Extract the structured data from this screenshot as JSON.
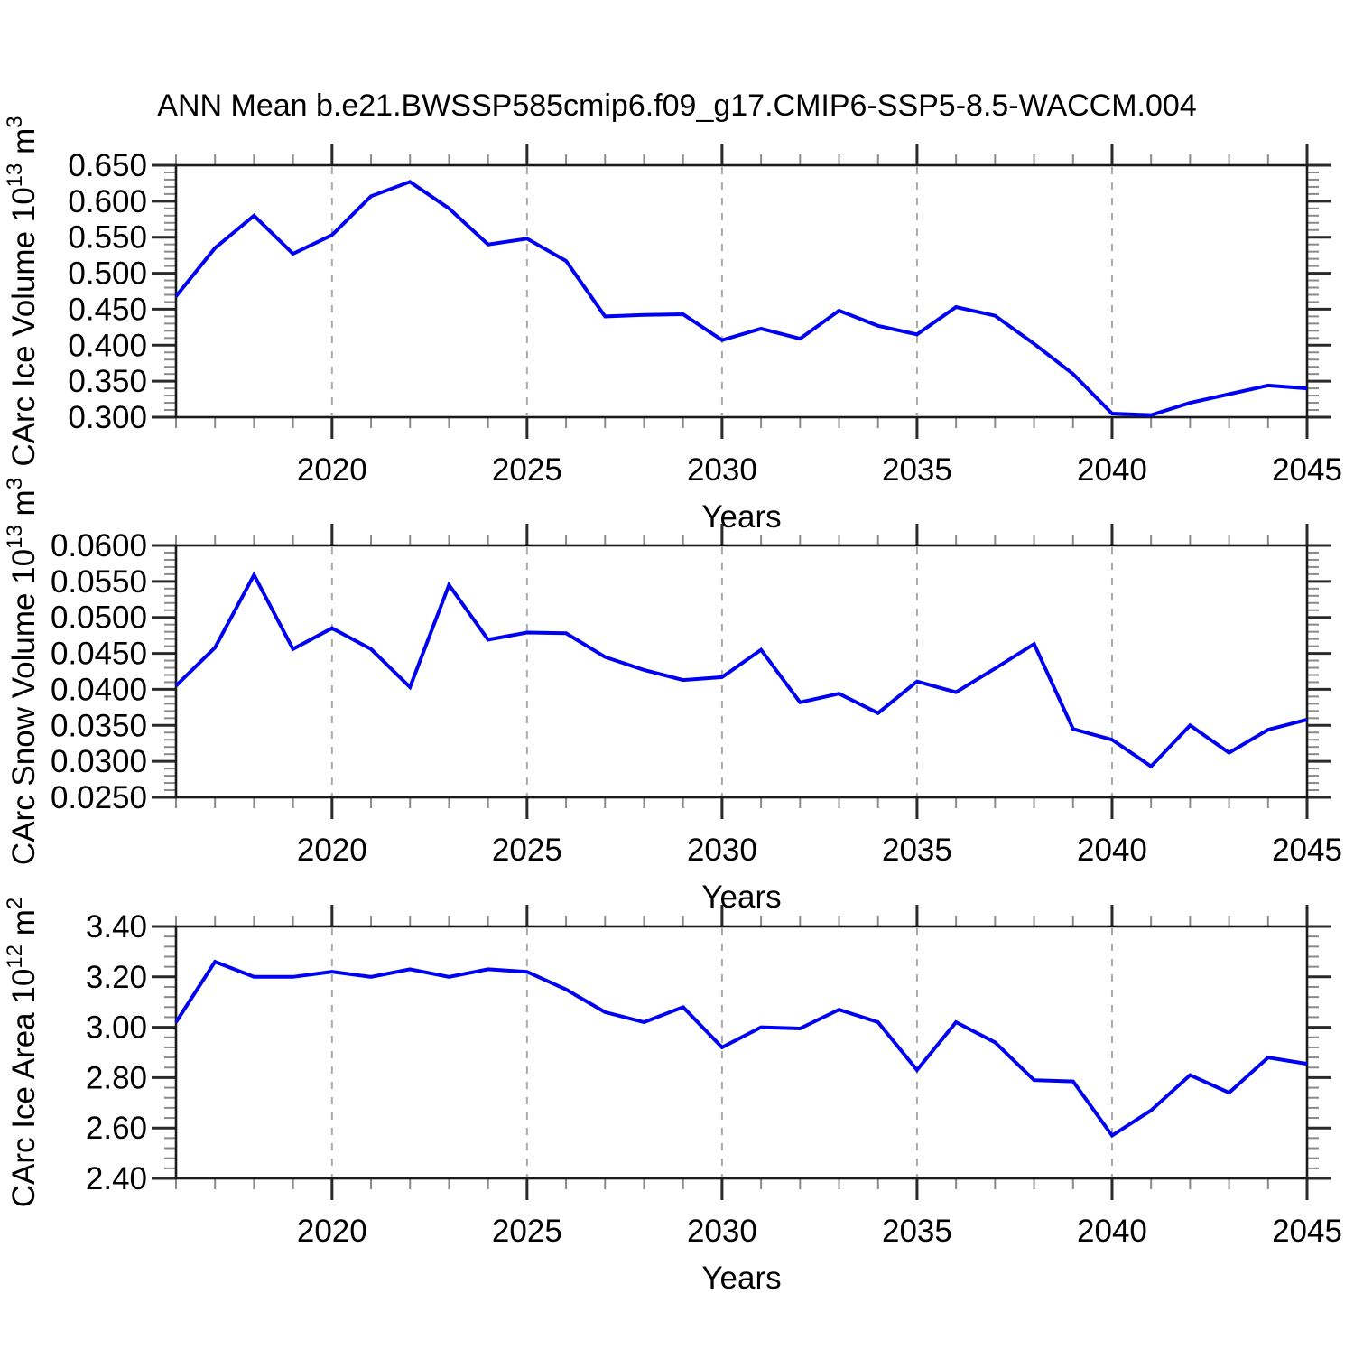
{
  "title": "ANN Mean b.e21.BWSSP585cmip6.f09_g17.CMIP6-SSP5-8.5-WACCM.004",
  "style": {
    "line_color": "#0000f2",
    "frame_color": "#1b1b1b",
    "major_tick_color": "#2a2a2a",
    "minor_tick_color": "#8a8a8a",
    "grid_color": "#aaaaaa",
    "text_color": "#000000"
  },
  "chart_data": [
    {
      "type": "line",
      "id": "ice-volume",
      "ylabel_text": "CArc Ice Volume 10^13 m^3",
      "ylabel_rich": [
        {
          "t": "CArc Ice Volume 10"
        },
        {
          "t": "13",
          "sup": true
        },
        {
          "t": " m"
        },
        {
          "t": "3",
          "sup": true
        }
      ],
      "xlabel": "Years",
      "x": [
        2016,
        2017,
        2018,
        2019,
        2020,
        2021,
        2022,
        2023,
        2024,
        2025,
        2026,
        2027,
        2028,
        2029,
        2030,
        2031,
        2032,
        2033,
        2034,
        2035,
        2036,
        2037,
        2038,
        2039,
        2040,
        2041,
        2042,
        2043,
        2044,
        2045
      ],
      "values": [
        0.468,
        0.535,
        0.58,
        0.527,
        0.553,
        0.607,
        0.627,
        0.59,
        0.54,
        0.548,
        0.517,
        0.44,
        0.442,
        0.443,
        0.407,
        0.423,
        0.409,
        0.448,
        0.427,
        0.415,
        0.453,
        0.441,
        0.402,
        0.36,
        0.305,
        0.303,
        0.32,
        0.332,
        0.344,
        0.34
      ],
      "xlim": [
        2016,
        2045
      ],
      "ylim": [
        0.3,
        0.65
      ],
      "yticks": {
        "values": [
          0.3,
          0.35,
          0.4,
          0.45,
          0.5,
          0.55,
          0.6,
          0.65
        ],
        "labels": [
          "0.300",
          "0.350",
          "0.400",
          "0.450",
          "0.500",
          "0.550",
          "0.600",
          "0.650"
        ]
      },
      "yminor_step": 0.01,
      "xticks": {
        "values": [
          2020,
          2025,
          2030,
          2035,
          2040,
          2045
        ],
        "labels": [
          "2020",
          "2025",
          "2030",
          "2035",
          "2040",
          "2045"
        ]
      },
      "xminor_step": 1,
      "grid_x": [
        2020,
        2025,
        2030,
        2035,
        2040
      ],
      "grid": "vertical-dashed"
    },
    {
      "type": "line",
      "id": "snow-volume",
      "ylabel_text": "CArc Snow Volume 10^13 m^3",
      "ylabel_rich": [
        {
          "t": "CArc Snow Volume 10"
        },
        {
          "t": "13",
          "sup": true
        },
        {
          "t": " m"
        },
        {
          "t": "3",
          "sup": true
        }
      ],
      "xlabel": "Years",
      "x": [
        2016,
        2017,
        2018,
        2019,
        2020,
        2021,
        2022,
        2023,
        2024,
        2025,
        2026,
        2027,
        2028,
        2029,
        2030,
        2031,
        2032,
        2033,
        2034,
        2035,
        2036,
        2037,
        2038,
        2039,
        2040,
        2041,
        2042,
        2043,
        2044,
        2045
      ],
      "values": [
        0.0405,
        0.0458,
        0.0559,
        0.0456,
        0.0485,
        0.0456,
        0.0403,
        0.0545,
        0.0469,
        0.0479,
        0.0478,
        0.0445,
        0.0427,
        0.0413,
        0.0417,
        0.0455,
        0.0382,
        0.0394,
        0.0367,
        0.0411,
        0.0396,
        0.0429,
        0.0463,
        0.0345,
        0.033,
        0.0293,
        0.035,
        0.0312,
        0.0344,
        0.0358
      ],
      "xlim": [
        2016,
        2045
      ],
      "ylim": [
        0.025,
        0.06
      ],
      "yticks": {
        "values": [
          0.025,
          0.03,
          0.035,
          0.04,
          0.045,
          0.05,
          0.055,
          0.06
        ],
        "labels": [
          "0.0250",
          "0.0300",
          "0.0350",
          "0.0400",
          "0.0450",
          "0.0500",
          "0.0550",
          "0.0600"
        ]
      },
      "yminor_step": 0.001,
      "xticks": {
        "values": [
          2020,
          2025,
          2030,
          2035,
          2040,
          2045
        ],
        "labels": [
          "2020",
          "2025",
          "2030",
          "2035",
          "2040",
          "2045"
        ]
      },
      "xminor_step": 1,
      "grid_x": [
        2020,
        2025,
        2030,
        2035,
        2040
      ],
      "grid": "vertical-dashed"
    },
    {
      "type": "line",
      "id": "ice-area",
      "ylabel_text": "CArc Ice Area 10^12 m^2",
      "ylabel_rich": [
        {
          "t": "CArc Ice Area 10"
        },
        {
          "t": "12",
          "sup": true
        },
        {
          "t": " m"
        },
        {
          "t": "2",
          "sup": true
        }
      ],
      "xlabel": "Years",
      "x": [
        2016,
        2017,
        2018,
        2019,
        2020,
        2021,
        2022,
        2023,
        2024,
        2025,
        2026,
        2027,
        2028,
        2029,
        2030,
        2031,
        2032,
        2033,
        2034,
        2035,
        2036,
        2037,
        2038,
        2039,
        2040,
        2041,
        2042,
        2043,
        2044,
        2045
      ],
      "values": [
        3.02,
        3.26,
        3.2,
        3.2,
        3.22,
        3.2,
        3.23,
        3.2,
        3.23,
        3.22,
        3.15,
        3.06,
        3.02,
        3.08,
        2.92,
        3.0,
        2.995,
        3.07,
        3.02,
        2.83,
        3.02,
        2.94,
        2.79,
        2.785,
        2.57,
        2.67,
        2.81,
        2.74,
        2.88,
        2.855
      ],
      "xlim": [
        2016,
        2045
      ],
      "ylim": [
        2.4,
        3.4
      ],
      "yticks": {
        "values": [
          2.4,
          2.6,
          2.8,
          3.0,
          3.2,
          3.4
        ],
        "labels": [
          "2.40",
          "2.60",
          "2.80",
          "3.00",
          "3.20",
          "3.40"
        ]
      },
      "yminor_step": 0.04,
      "xticks": {
        "values": [
          2020,
          2025,
          2030,
          2035,
          2040,
          2045
        ],
        "labels": [
          "2020",
          "2025",
          "2030",
          "2035",
          "2040",
          "2045"
        ]
      },
      "xminor_step": 1,
      "grid_x": [
        2020,
        2025,
        2030,
        2035,
        2040
      ],
      "grid": "vertical-dashed"
    }
  ]
}
